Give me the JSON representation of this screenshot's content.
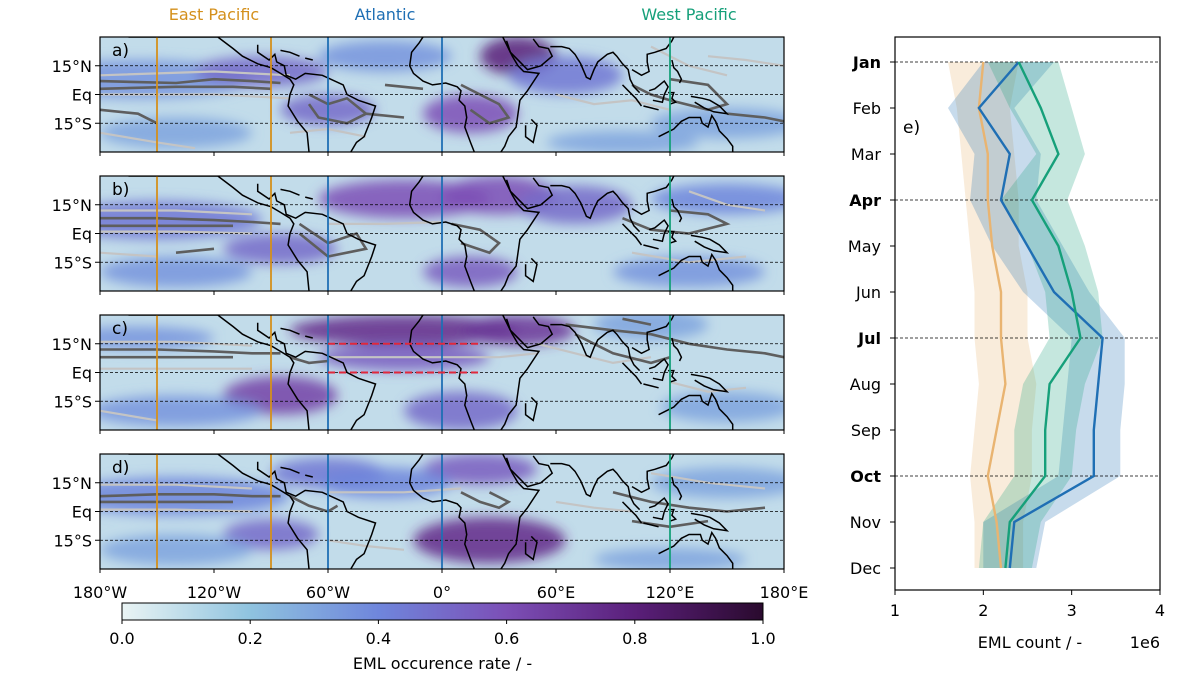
{
  "chart_data": [
    {
      "type": "heatmap",
      "panels": [
        {
          "label": "a)",
          "month": "Jan"
        },
        {
          "label": "b)",
          "month": "Apr"
        },
        {
          "label": "c)",
          "month": "Jul"
        },
        {
          "label": "d)",
          "month": "Oct"
        }
      ],
      "region_lines": [
        {
          "name": "East Pacific",
          "color": "#d4901c",
          "lons": [
            -150,
            -90
          ]
        },
        {
          "name": "Atlantic",
          "color": "#1f6fb4",
          "lons": [
            -60,
            0
          ]
        },
        {
          "name": "West Pacific",
          "color": "#16a07a",
          "lons": [
            120
          ]
        }
      ],
      "region_labels": [
        {
          "name": "East Pacific",
          "color": "#d4901c",
          "lon": -120
        },
        {
          "name": "Atlantic",
          "color": "#1f6fb4",
          "lon": -30
        },
        {
          "name": "West Pacific",
          "color": "#16a07a",
          "lon": 130
        }
      ],
      "lat_ticks": [
        {
          "lat": 15,
          "label": "15°N"
        },
        {
          "lat": 0,
          "label": "Eq"
        },
        {
          "lat": -15,
          "label": "15°S"
        }
      ],
      "lon_ticks": [
        {
          "lon": -180,
          "label": "180°W"
        },
        {
          "lon": -120,
          "label": "120°W"
        },
        {
          "lon": -60,
          "label": "60°W"
        },
        {
          "lon": 0,
          "label": "0°"
        },
        {
          "lon": 60,
          "label": "60°E"
        },
        {
          "lon": 120,
          "label": "120°E"
        },
        {
          "lon": 180,
          "label": "180°E"
        }
      ],
      "xlim": [
        -180,
        180
      ],
      "ylim": [
        -30,
        30
      ],
      "highlight_box": {
        "panel": "c)",
        "lon": [
          -60,
          20
        ],
        "lat": [
          0,
          15
        ],
        "color": "#e0283c"
      },
      "colorbar": {
        "label": "EML occurence rate / -",
        "range": [
          0,
          1
        ],
        "ticks": [
          {
            "value": 0,
            "label": "0.0"
          },
          {
            "value": 0.2,
            "label": "0.2"
          },
          {
            "value": 0.4,
            "label": "0.4"
          },
          {
            "value": 0.6,
            "label": "0.6"
          },
          {
            "value": 0.8,
            "label": "0.8"
          },
          {
            "value": 1.0,
            "label": "1.0"
          }
        ],
        "colors": [
          "#eaf4f4",
          "#8fc3df",
          "#6f86dc",
          "#7c4fb6",
          "#5a1f7a",
          "#2a0a2e"
        ]
      }
    },
    {
      "type": "line",
      "label": "e)",
      "months": [
        "Jan",
        "Feb",
        "Mar",
        "Apr",
        "May",
        "Jun",
        "Jul",
        "Aug",
        "Sep",
        "Oct",
        "Nov",
        "Dec"
      ],
      "bold_months": [
        "Jan",
        "Apr",
        "Jul",
        "Oct"
      ],
      "series": [
        {
          "color": "#e9b471",
          "values": [
            2.0,
            1.95,
            2.05,
            2.05,
            2.1,
            2.2,
            2.2,
            2.25,
            2.15,
            2.05,
            2.15,
            2.2
          ],
          "lower": [
            1.6,
            1.7,
            1.75,
            1.8,
            1.85,
            1.9,
            1.9,
            1.95,
            1.9,
            1.85,
            1.9,
            1.9
          ],
          "upper": [
            2.4,
            2.3,
            2.35,
            2.4,
            2.4,
            2.5,
            2.5,
            2.6,
            2.55,
            2.55,
            2.45,
            2.45
          ]
        },
        {
          "color": "#1f6fb4",
          "values": [
            2.4,
            1.95,
            2.3,
            2.2,
            2.5,
            2.8,
            3.35,
            3.3,
            3.25,
            3.25,
            2.35,
            2.3
          ],
          "lower": [
            2.0,
            1.6,
            1.9,
            1.85,
            2.1,
            2.45,
            3.0,
            2.95,
            2.9,
            2.85,
            2.0,
            2.0
          ],
          "upper": [
            2.8,
            2.35,
            2.65,
            2.6,
            2.9,
            3.2,
            3.6,
            3.6,
            3.55,
            3.55,
            2.7,
            2.6
          ]
        },
        {
          "color": "#16a07a",
          "values": [
            2.4,
            2.65,
            2.85,
            2.55,
            2.85,
            3.0,
            3.1,
            2.75,
            2.7,
            2.7,
            2.3,
            2.25
          ],
          "lower": [
            2.05,
            2.3,
            2.6,
            2.2,
            2.5,
            2.7,
            2.75,
            2.45,
            2.35,
            2.35,
            2.0,
            1.95
          ],
          "upper": [
            2.85,
            3.0,
            3.15,
            2.95,
            3.15,
            3.3,
            3.35,
            3.15,
            3.05,
            3.0,
            2.65,
            2.55
          ]
        }
      ],
      "xlim": [
        1,
        4
      ],
      "x_ticks": [
        1,
        2,
        3,
        4
      ],
      "xlabel": "EML count / -",
      "x_multiplier": "1e6"
    }
  ]
}
